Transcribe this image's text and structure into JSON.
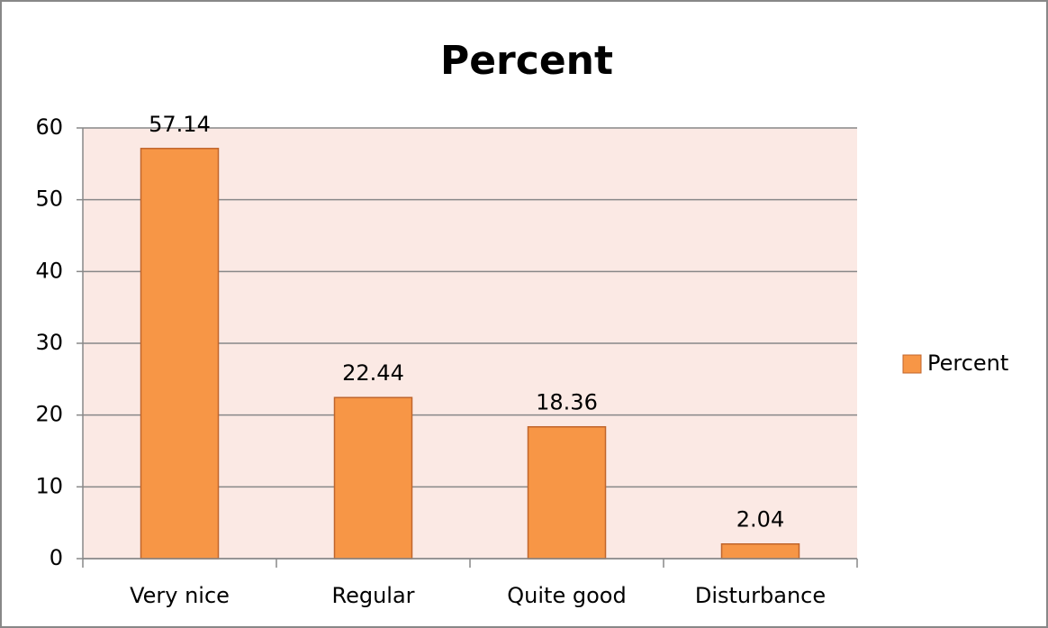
{
  "chart_data": {
    "type": "bar",
    "title": "Percent",
    "categories": [
      "Very nice",
      "Regular",
      "Quite good",
      "Disturbance"
    ],
    "series": [
      {
        "name": "Percent",
        "color": "#f79646",
        "values": [
          57.14,
          22.44,
          18.36,
          2.04
        ]
      }
    ],
    "ylim": [
      0,
      60
    ],
    "yticks": [
      0,
      10,
      20,
      30,
      40,
      50,
      60
    ],
    "grid": true,
    "legend": "right"
  }
}
